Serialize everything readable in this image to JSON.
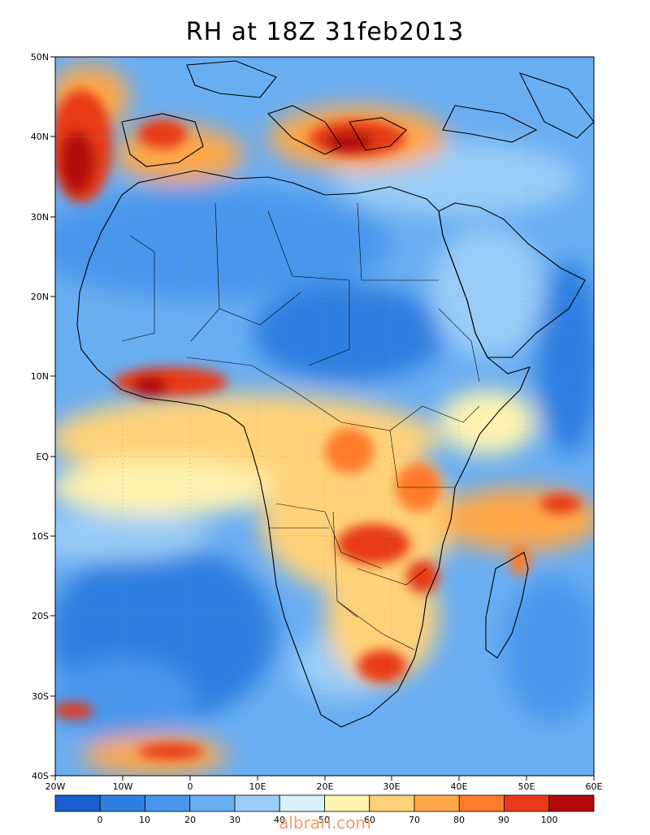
{
  "title": "RH at 18Z   31feb2013",
  "map": {
    "lon_ticks": [
      "20W",
      "10W",
      "0",
      "10E",
      "20E",
      "30E",
      "40E",
      "50E",
      "60E"
    ],
    "lat_ticks": [
      "50N",
      "40N",
      "30N",
      "20N",
      "10N",
      "EQ",
      "10S",
      "20S",
      "30S",
      "40S"
    ],
    "lon_range": [
      -20,
      60
    ],
    "lat_range": [
      -40,
      50
    ],
    "grid": "dotted"
  },
  "colorbar": {
    "labels": [
      "0",
      "10",
      "20",
      "30",
      "40",
      "50",
      "60",
      "70",
      "80",
      "90",
      "100"
    ],
    "colors": [
      "#1a5fd0",
      "#2f7fe0",
      "#4a96ec",
      "#6aaef2",
      "#99cdf7",
      "#d8f1fb",
      "#fff3b0",
      "#ffd27a",
      "#ffa84a",
      "#ff7a2a",
      "#e83a18",
      "#b40a0a"
    ]
  },
  "watermark": "albrari.com"
}
